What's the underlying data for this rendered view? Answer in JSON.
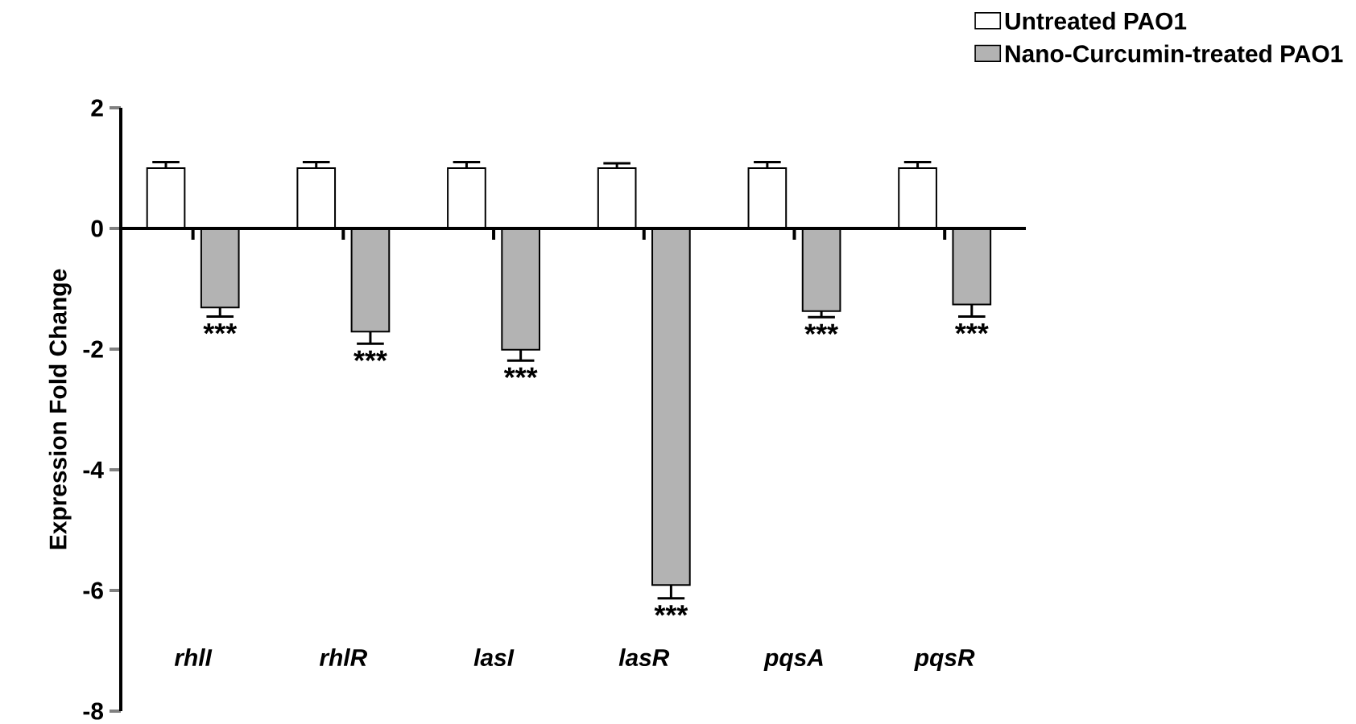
{
  "chart_data": {
    "type": "bar",
    "ylabel": "Expression Fold Change",
    "categories": [
      "rhlI",
      "rhlR",
      "lasI",
      "lasR",
      "pqsA",
      "pqsR"
    ],
    "series": [
      {
        "name": "Untreated PAO1",
        "color": "#ffffff",
        "values": [
          1,
          1,
          1,
          1,
          1,
          1
        ],
        "errors": [
          0.1,
          0.1,
          0.1,
          0.08,
          0.1,
          0.1
        ]
      },
      {
        "name": "Nano-Curcumin-treated PAO1",
        "color": "#b3b3b3",
        "values": [
          -1.31,
          -1.71,
          -2.01,
          -5.91,
          -1.37,
          -1.26
        ],
        "errors": [
          0.15,
          0.2,
          0.18,
          0.22,
          0.1,
          0.2
        ]
      }
    ],
    "ylim": [
      -8,
      2
    ],
    "yticks": [
      -8,
      -6,
      -4,
      -2,
      0,
      2
    ],
    "legend": "top right",
    "annotations": [
      "***",
      "***",
      "***",
      "***",
      "***",
      "***"
    ]
  }
}
